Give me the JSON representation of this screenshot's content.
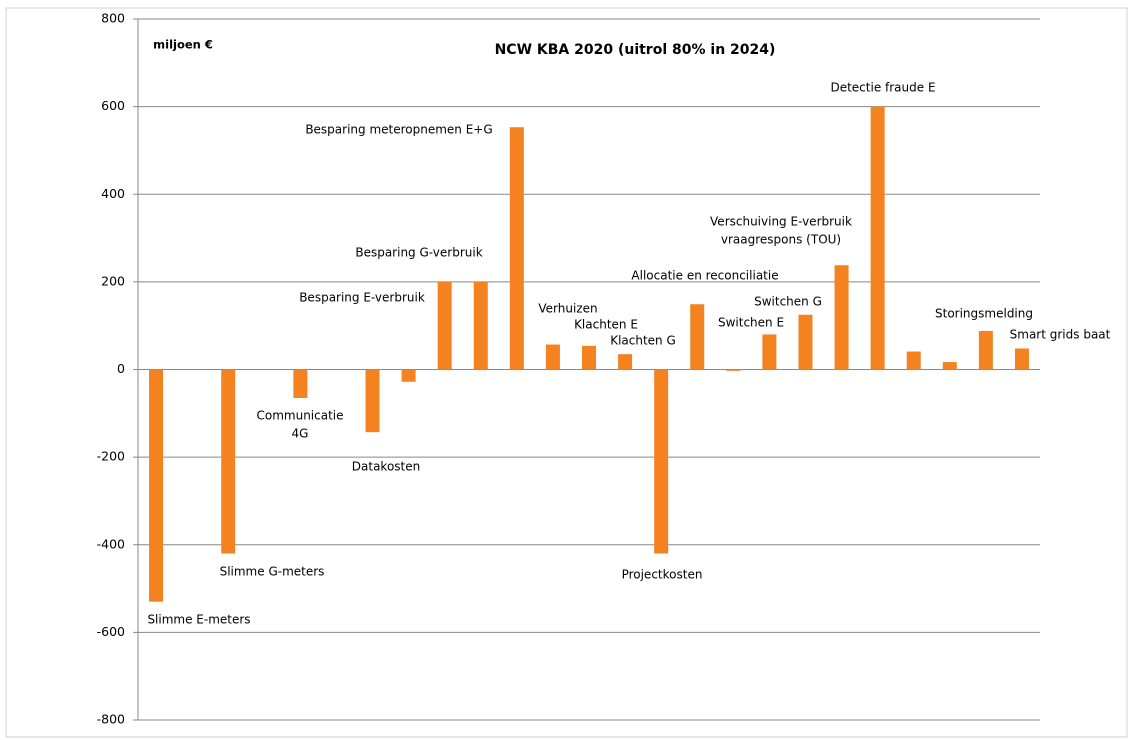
{
  "chart_data": {
    "type": "bar",
    "title": "NCW KBA 2020 (uitrol 80% in 2024)",
    "y_label": "miljoen €",
    "categories": [
      "Slimme E-meters",
      null,
      "Slimme G-meters",
      null,
      [
        "Communicatie",
        "4G"
      ],
      null,
      "Datakosten",
      null,
      "Besparing E-verbruik",
      "Besparing G-verbruik",
      "Besparing meteropnemen  E+G",
      "Verhuizen",
      "Klachten E",
      "Klachten G",
      "Projectkosten",
      "Allocatie en reconciliatie",
      null,
      "Switchen E",
      "Switchen G",
      [
        "Verschuiving E-verbruik",
        "vraagrespons (TOU)"
      ],
      "Detectie   fraude E",
      null,
      null,
      "Storingsmelding",
      "Smart grids baat"
    ],
    "values": [
      -530,
      null,
      -420,
      null,
      -65,
      null,
      -143,
      -28,
      200,
      200,
      553,
      57,
      54,
      35,
      -420,
      149,
      -3,
      80,
      125,
      238,
      600,
      41,
      17,
      88,
      48
    ],
    "color": "#f58220",
    "ylim": [
      -800,
      800
    ],
    "yticks": [
      -800,
      -600,
      -400,
      -200,
      0,
      200,
      400,
      600,
      800
    ],
    "grid": true
  }
}
